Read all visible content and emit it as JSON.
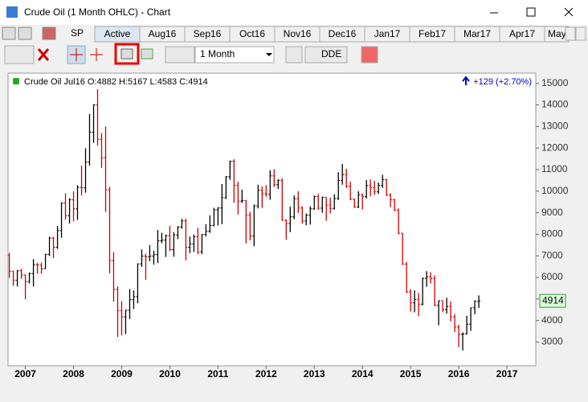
{
  "window": {
    "title": "Crude Oil (1 Month OHLC) - Chart"
  },
  "tabs": {
    "symbol": "SP",
    "items": [
      "Active",
      "Aug16",
      "Sep16",
      "Oct16",
      "Nov16",
      "Dec16",
      "Jan17",
      "Feb17",
      "Mar17",
      "Apr17",
      "May"
    ]
  },
  "toolbar": {
    "period": "1 Month",
    "dde": "DDE"
  },
  "chart_data": {
    "type": "ohlc",
    "header": "Crude Oil Jul16 O:4882 H:5167 L:4583 C:4914",
    "change": "+129 (+2.70%)",
    "last": 4914,
    "x": [
      2006.667,
      2006.75,
      2006.833,
      2006.917,
      2007,
      2007.083,
      2007.167,
      2007.25,
      2007.333,
      2007.417,
      2007.5,
      2007.583,
      2007.667,
      2007.75,
      2007.833,
      2007.917,
      2008,
      2008.083,
      2008.167,
      2008.25,
      2008.333,
      2008.417,
      2008.5,
      2008.583,
      2008.667,
      2008.75,
      2008.833,
      2008.917,
      2009,
      2009.083,
      2009.167,
      2009.25,
      2009.333,
      2009.417,
      2009.5,
      2009.583,
      2009.667,
      2009.75,
      2009.833,
      2009.917,
      2010,
      2010.083,
      2010.167,
      2010.25,
      2010.333,
      2010.417,
      2010.5,
      2010.583,
      2010.667,
      2010.75,
      2010.833,
      2010.917,
      2011,
      2011.083,
      2011.167,
      2011.25,
      2011.333,
      2011.417,
      2011.5,
      2011.583,
      2011.667,
      2011.75,
      2011.833,
      2011.917,
      2012,
      2012.083,
      2012.167,
      2012.25,
      2012.333,
      2012.417,
      2012.5,
      2012.583,
      2012.667,
      2012.75,
      2012.833,
      2012.917,
      2013,
      2013.083,
      2013.167,
      2013.25,
      2013.333,
      2013.417,
      2013.5,
      2013.583,
      2013.667,
      2013.75,
      2013.833,
      2013.917,
      2014,
      2014.083,
      2014.167,
      2014.25,
      2014.333,
      2014.417,
      2014.5,
      2014.583,
      2014.667,
      2014.75,
      2014.833,
      2014.917,
      2015,
      2015.083,
      2015.167,
      2015.25,
      2015.333,
      2015.417,
      2015.5,
      2015.583,
      2015.667,
      2015.75,
      2015.833,
      2015.917,
      2016,
      2016.083,
      2016.167,
      2016.25,
      2016.333,
      2016.417
    ],
    "open": [
      7020,
      6290,
      5870,
      6310,
      6110,
      5810,
      6180,
      6590,
      6570,
      6400,
      7070,
      7820,
      7400,
      8170,
      9450,
      8870,
      9600,
      9180,
      10180,
      10160,
      11350,
      12740,
      14000,
      12410,
      11550,
      10060,
      6780,
      5440,
      4460,
      4170,
      4480,
      4970,
      5110,
      6630,
      6990,
      6950,
      6990,
      7060,
      7700,
      7730,
      7940,
      7290,
      7970,
      8340,
      8620,
      7400,
      7560,
      7890,
      7190,
      7990,
      8140,
      8410,
      9140,
      9220,
      9700,
      10670,
      11390,
      10270,
      9540,
      9570,
      8880,
      7920,
      9320,
      10040,
      9880,
      9850,
      10710,
      10300,
      10490,
      8650,
      8500,
      8810,
      9650,
      9220,
      8620,
      8890,
      9180,
      9750,
      9210,
      9720,
      9350,
      9200,
      9660,
      10500,
      10770,
      10230,
      9640,
      9270,
      9840,
      9750,
      10260,
      10160,
      9970,
      10270,
      10540,
      9820,
      9600,
      9120,
      8050,
      6620,
      5330,
      4820,
      4980,
      4760,
      5960,
      6030,
      5950,
      4710,
      4920,
      4510,
      4660,
      4170,
      3700,
      3360,
      3380,
      3830,
      4590,
      4882
    ],
    "high": [
      7140,
      6300,
      6340,
      6400,
      6140,
      6230,
      6850,
      6680,
      6690,
      7100,
      7890,
      7880,
      8390,
      9480,
      9900,
      9680,
      10000,
      10280,
      11190,
      11990,
      13580,
      14040,
      14730,
      12700,
      13000,
      10200,
      7170,
      5590,
      4900,
      4500,
      5460,
      5400,
      6650,
      7300,
      7100,
      7500,
      7240,
      8200,
      8070,
      7990,
      8390,
      8100,
      8380,
      8720,
      8720,
      7900,
      7990,
      8300,
      8010,
      8470,
      8880,
      9230,
      9260,
      10330,
      10700,
      11420,
      11480,
      10440,
      10070,
      9590,
      9040,
      9380,
      10300,
      10230,
      10280,
      10980,
      11020,
      10560,
      10600,
      8700,
      9280,
      9800,
      10000,
      9300,
      8960,
      9300,
      9800,
      9870,
      9750,
      9720,
      9700,
      9860,
      10880,
      11260,
      11040,
      10450,
      9650,
      10000,
      9880,
      10520,
      10550,
      10480,
      10400,
      10760,
      10570,
      9900,
      9650,
      9200,
      8060,
      6720,
      5460,
      5400,
      5280,
      5990,
      6290,
      6240,
      6100,
      4930,
      4930,
      5060,
      4880,
      4290,
      3800,
      3450,
      4220,
      4600,
      4930,
      5167
    ],
    "low": [
      5980,
      5610,
      5580,
      5940,
      4990,
      5720,
      5580,
      6170,
      6170,
      6400,
      6990,
      6900,
      7320,
      7840,
      8680,
      8500,
      8600,
      8670,
      9800,
      9930,
      11180,
      12240,
      12120,
      11080,
      9040,
      6180,
      4870,
      3240,
      3320,
      3370,
      4070,
      4530,
      4800,
      6490,
      5900,
      6750,
      6590,
      6670,
      7580,
      6950,
      7220,
      6960,
      7780,
      8260,
      6790,
      7130,
      7180,
      7080,
      7080,
      7900,
      8070,
      8370,
      8410,
      8470,
      9640,
      10530,
      9460,
      8920,
      9450,
      7580,
      7720,
      7450,
      9200,
      9230,
      9740,
      9600,
      10200,
      10100,
      8620,
      7750,
      8100,
      8700,
      8990,
      8500,
      8420,
      8450,
      9140,
      9140,
      9000,
      8630,
      8960,
      9150,
      9590,
      10300,
      10150,
      9580,
      9220,
      9210,
      9150,
      9660,
      9770,
      9830,
      9870,
      10150,
      9780,
      9260,
      9080,
      8000,
      6580,
      5270,
      4420,
      4380,
      4200,
      4700,
      5570,
      5720,
      4660,
      3780,
      4390,
      4320,
      3960,
      3470,
      2760,
      2610,
      3350,
      3520,
      4290,
      4583
    ],
    "close": [
      6290,
      5870,
      6310,
      6110,
      5810,
      6180,
      6590,
      6570,
      6400,
      7070,
      7820,
      7400,
      8170,
      9450,
      8870,
      9600,
      9180,
      10180,
      10160,
      11350,
      12740,
      14000,
      12410,
      11550,
      10060,
      6780,
      5440,
      4460,
      4170,
      4480,
      4970,
      5110,
      6630,
      6990,
      6950,
      6990,
      7060,
      7700,
      7730,
      7940,
      7290,
      7970,
      8340,
      8620,
      7400,
      7560,
      7890,
      7190,
      7990,
      8140,
      8410,
      9140,
      9220,
      9700,
      10670,
      11390,
      10270,
      9540,
      9570,
      8880,
      7920,
      9320,
      10040,
      9880,
      9850,
      10710,
      10300,
      10490,
      8650,
      8500,
      8810,
      9650,
      9220,
      8620,
      8890,
      9180,
      9750,
      9210,
      9720,
      9350,
      9200,
      9660,
      10500,
      10770,
      10230,
      9640,
      9270,
      9840,
      9750,
      10260,
      10160,
      9970,
      10270,
      10540,
      9820,
      9600,
      9120,
      8050,
      6620,
      5330,
      4820,
      4980,
      4760,
      5960,
      6030,
      5950,
      4710,
      4920,
      4510,
      4660,
      4170,
      3700,
      3360,
      3380,
      3830,
      4590,
      4910,
      4914
    ],
    "xlim": [
      2006.64,
      2017.6
    ],
    "xticks": [
      2007,
      2008,
      2009,
      2010,
      2011,
      2012,
      2013,
      2014,
      2015,
      2016,
      2017
    ],
    "ylim": [
      1900,
      15400
    ],
    "yticks": [
      3000,
      4000,
      5000,
      6000,
      7000,
      8000,
      9000,
      10000,
      11000,
      12000,
      13000,
      14000,
      15000
    ],
    "up_color": "#000000",
    "down_color": "#cc0000"
  }
}
